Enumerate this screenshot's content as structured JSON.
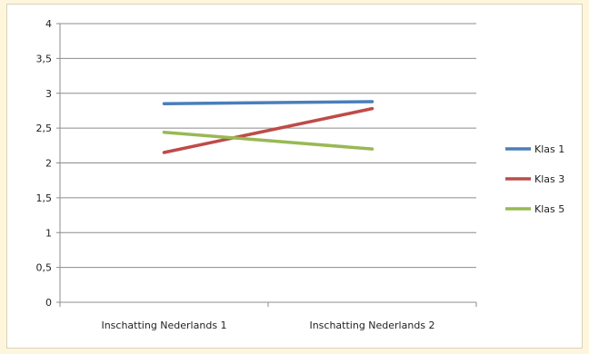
{
  "chart_data": {
    "type": "line",
    "title": "",
    "xlabel": "",
    "ylabel": "",
    "categories": [
      "Inschatting Nederlands  1",
      "Inschatting Nederlands  2"
    ],
    "ylim": [
      0,
      4
    ],
    "yticks": [
      0,
      0.5,
      1,
      1.5,
      2,
      2.5,
      3,
      3.5,
      4
    ],
    "ytick_labels": [
      "0",
      "0,5",
      "1",
      "1,5",
      "2",
      "2,5",
      "3",
      "3,5",
      "4"
    ],
    "grid": true,
    "legend_position": "right",
    "series": [
      {
        "name": "Klas 1",
        "values": [
          2.85,
          2.88
        ],
        "color": "#4a7ebb"
      },
      {
        "name": "Klas 3",
        "values": [
          2.15,
          2.78
        ],
        "color": "#be4b48"
      },
      {
        "name": "Klas 5",
        "values": [
          2.44,
          2.2
        ],
        "color": "#98b954"
      }
    ]
  }
}
